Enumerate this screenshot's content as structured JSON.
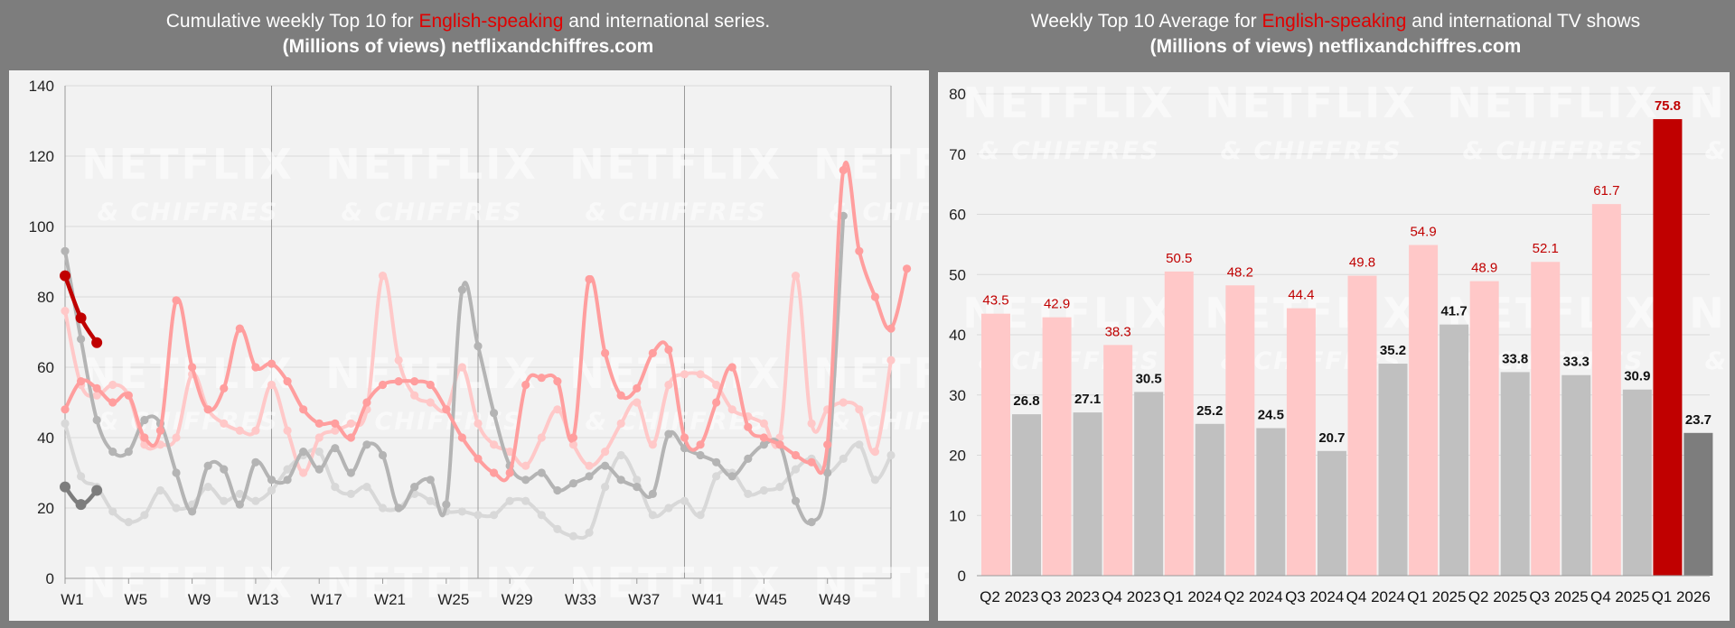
{
  "colors": {
    "english_current": "#c00000",
    "english_prev": "#ff9e9e",
    "english_old": "#ffc8c8",
    "intl_current": "#7d7d7d",
    "intl_prev": "#b4b4b4",
    "intl_old": "#d8d8d8",
    "highlight_text": "#e00000"
  },
  "left_panel": {
    "title_pre": "Cumulative weekly Top 10 for ",
    "title_highlight": "English-speaking",
    "title_post": " and international series.",
    "subtitle": "(Millions of views) netflixandchiffres.com"
  },
  "right_panel": {
    "title_pre": "Weekly Top 10 Average for ",
    "title_highlight": "English-speaking",
    "title_post": " and international TV shows",
    "subtitle": "(Millions of views) netflixandchiffres.com"
  },
  "watermark": {
    "line1": "NETFLIX",
    "line2": "& CHIFFRES"
  },
  "chart_data": [
    {
      "type": "line",
      "ylim": [
        0,
        140
      ],
      "yticks": [
        0,
        20,
        40,
        60,
        80,
        100,
        120,
        140
      ],
      "x_tick_labels": [
        "W1",
        "W5",
        "W9",
        "W13",
        "W17",
        "W21",
        "W25",
        "W29",
        "W33",
        "W37",
        "W41",
        "W45",
        "W49"
      ],
      "x_tick_weeks": [
        1,
        5,
        9,
        13,
        17,
        21,
        25,
        29,
        33,
        37,
        41,
        45,
        49
      ],
      "vertical_lines_at_weeks": [
        14,
        27,
        40
      ],
      "x_range_weeks": [
        1,
        53
      ],
      "grid": "horizontal",
      "series": [
        {
          "style": "english_old",
          "values": [
            76,
            55,
            52,
            55,
            52,
            38,
            38,
            40,
            58,
            48,
            44,
            42,
            42,
            55,
            42,
            30,
            40,
            42,
            44,
            48,
            86,
            62,
            52,
            50,
            48,
            60,
            44,
            38,
            36,
            32,
            40,
            48,
            38,
            32,
            36,
            44,
            50,
            38,
            55,
            58,
            58,
            55,
            48,
            46,
            44,
            40,
            86,
            44,
            48,
            50,
            48,
            36,
            62
          ]
        },
        {
          "style": "english_prev",
          "values": [
            48,
            56,
            54,
            50,
            52,
            40,
            42,
            79,
            60,
            48,
            54,
            71,
            60,
            61,
            56,
            48,
            44,
            44,
            40,
            50,
            55,
            56,
            56,
            55,
            48,
            40,
            34,
            30,
            30,
            55,
            57,
            56,
            40,
            85,
            64,
            52,
            54,
            64,
            65,
            40,
            38,
            50,
            60,
            43,
            40,
            38,
            35,
            33,
            38,
            116,
            93,
            80,
            71,
            88
          ]
        },
        {
          "style": "english_current",
          "values": [
            86,
            74,
            67
          ]
        },
        {
          "style": "intl_old",
          "values": [
            44,
            29,
            26,
            19,
            16,
            18,
            25,
            20,
            21,
            26,
            22,
            24,
            22,
            25,
            31,
            35,
            36,
            26,
            24,
            26,
            20,
            20,
            24,
            22,
            19,
            19,
            18,
            18,
            22,
            22,
            18,
            14,
            12,
            13,
            26,
            35,
            28,
            18,
            20,
            22,
            18,
            29,
            30,
            24,
            25,
            26,
            31,
            34,
            30,
            34,
            38,
            28,
            35
          ]
        },
        {
          "style": "intl_prev",
          "values": [
            93,
            68,
            45,
            36,
            36,
            45,
            44,
            30,
            19,
            32,
            31,
            21,
            33,
            28,
            28,
            36,
            31,
            37,
            30,
            38,
            35,
            20,
            26,
            28,
            21,
            82,
            66,
            47,
            32,
            28,
            30,
            25,
            27,
            29,
            32,
            28,
            26,
            24,
            41,
            37,
            35,
            33,
            29,
            34,
            38,
            38,
            22,
            16,
            30,
            103
          ]
        },
        {
          "style": "intl_current",
          "values": [
            26,
            21,
            25
          ]
        }
      ]
    },
    {
      "type": "bar",
      "ylim": [
        0,
        80
      ],
      "yticks": [
        0,
        10,
        20,
        30,
        40,
        50,
        60,
        70,
        80
      ],
      "grid": "horizontal",
      "categories": [
        "Q2 2023",
        "Q3 2023",
        "Q4 2023",
        "Q1 2024",
        "Q2 2024",
        "Q3 2024",
        "Q4 2024",
        "Q1 2025",
        "Q2 2025",
        "Q3 2025",
        "Q4 2025",
        "Q1 2026"
      ],
      "series": [
        {
          "style": "english",
          "values": [
            43.5,
            42.9,
            38.3,
            50.5,
            48.2,
            44.4,
            49.8,
            54.9,
            48.9,
            52.1,
            61.7,
            75.8
          ]
        },
        {
          "style": "intl",
          "values": [
            26.8,
            27.1,
            30.5,
            25.2,
            24.5,
            20.7,
            35.2,
            41.7,
            33.8,
            33.3,
            30.9,
            23.7
          ]
        }
      ],
      "value_labels": {
        "english": [
          "43.5",
          "42.9",
          "38.3",
          "50.5",
          "48.2",
          "44.4",
          "49.8",
          "54.9",
          "48.9",
          "52.1",
          "61.7",
          "75.8"
        ],
        "intl": [
          "26.8",
          "27.1",
          "30.5",
          "25.2",
          "24.5",
          "20.7",
          "35.2",
          "41.7",
          "33.8",
          "33.3",
          "30.9",
          "23.7"
        ]
      }
    }
  ]
}
